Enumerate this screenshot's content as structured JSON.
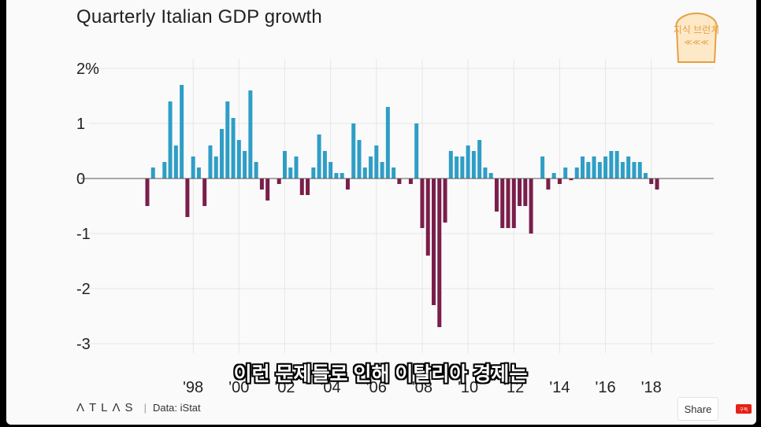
{
  "title": "Quarterly Italian GDP growth",
  "footer": {
    "brand": "ΛTLΛS",
    "source": "Data: iStat",
    "share_label": "Share"
  },
  "subtitle": "이런 문제들로 인해 이탈리아 경제는",
  "channel_badge": {
    "text": "지식 브런치",
    "icon": "bread-icon"
  },
  "subscribe_badge": "구독",
  "colors": {
    "positive": "#2e9ec6",
    "negative": "#7a1e4b",
    "grid": "#e6e6e6",
    "zero_line": "#555555"
  },
  "chart_data": {
    "type": "bar",
    "title": "Quarterly Italian GDP growth",
    "ylim": [
      -3,
      2
    ],
    "y_ticks": [
      {
        "v": 2,
        "label": "2%"
      },
      {
        "v": 1,
        "label": "1"
      },
      {
        "v": 0,
        "label": "0"
      },
      {
        "v": -1,
        "label": "-1"
      },
      {
        "v": -2,
        "label": "-2"
      },
      {
        "v": -3,
        "label": "-3"
      }
    ],
    "x_ticks": [
      {
        "year": 1998,
        "label": "'98"
      },
      {
        "year": 2000,
        "label": "'00"
      },
      {
        "year": 2002,
        "label": "'02"
      },
      {
        "year": 2004,
        "label": "'04"
      },
      {
        "year": 2006,
        "label": "'06"
      },
      {
        "year": 2008,
        "label": "'08"
      },
      {
        "year": 2010,
        "label": "'10"
      },
      {
        "year": 2012,
        "label": "'12"
      },
      {
        "year": 2014,
        "label": "'14"
      },
      {
        "year": 2016,
        "label": "'16"
      },
      {
        "year": 2018,
        "label": "'18"
      }
    ],
    "grid": true,
    "start_year": 1996,
    "quarters_per_year": 4,
    "values": [
      -0.5,
      0.2,
      0,
      0.3,
      1.4,
      0.6,
      1.7,
      -0.7,
      0.4,
      0.2,
      -0.5,
      0.6,
      0.4,
      0.9,
      1.4,
      1.1,
      0.7,
      0.5,
      1.6,
      0.3,
      -0.2,
      -0.4,
      0,
      -0.1,
      0.5,
      0.2,
      0.4,
      -0.3,
      -0.3,
      0.2,
      0.8,
      0.5,
      0.3,
      0.1,
      0.1,
      -0.2,
      1.0,
      0.7,
      0.2,
      0.4,
      0.6,
      0.3,
      1.3,
      0.2,
      -0.1,
      0,
      -0.1,
      1.0,
      -0.9,
      -1.4,
      -2.3,
      -2.7,
      -0.8,
      0.5,
      0.4,
      0.4,
      0.6,
      0.5,
      0.7,
      0.2,
      0.1,
      -0.6,
      -0.9,
      -0.9,
      -0.9,
      -0.5,
      -0.5,
      -1.0,
      0,
      0.4,
      -0.2,
      0.1,
      -0.1,
      0.2,
      -0.03,
      0.2,
      0.4,
      0.3,
      0.4,
      0.3,
      0.4,
      0.5,
      0.5,
      0.3,
      0.4,
      0.3,
      0.3,
      0.1,
      -0.1,
      -0.2,
      0,
      0,
      0
    ]
  }
}
